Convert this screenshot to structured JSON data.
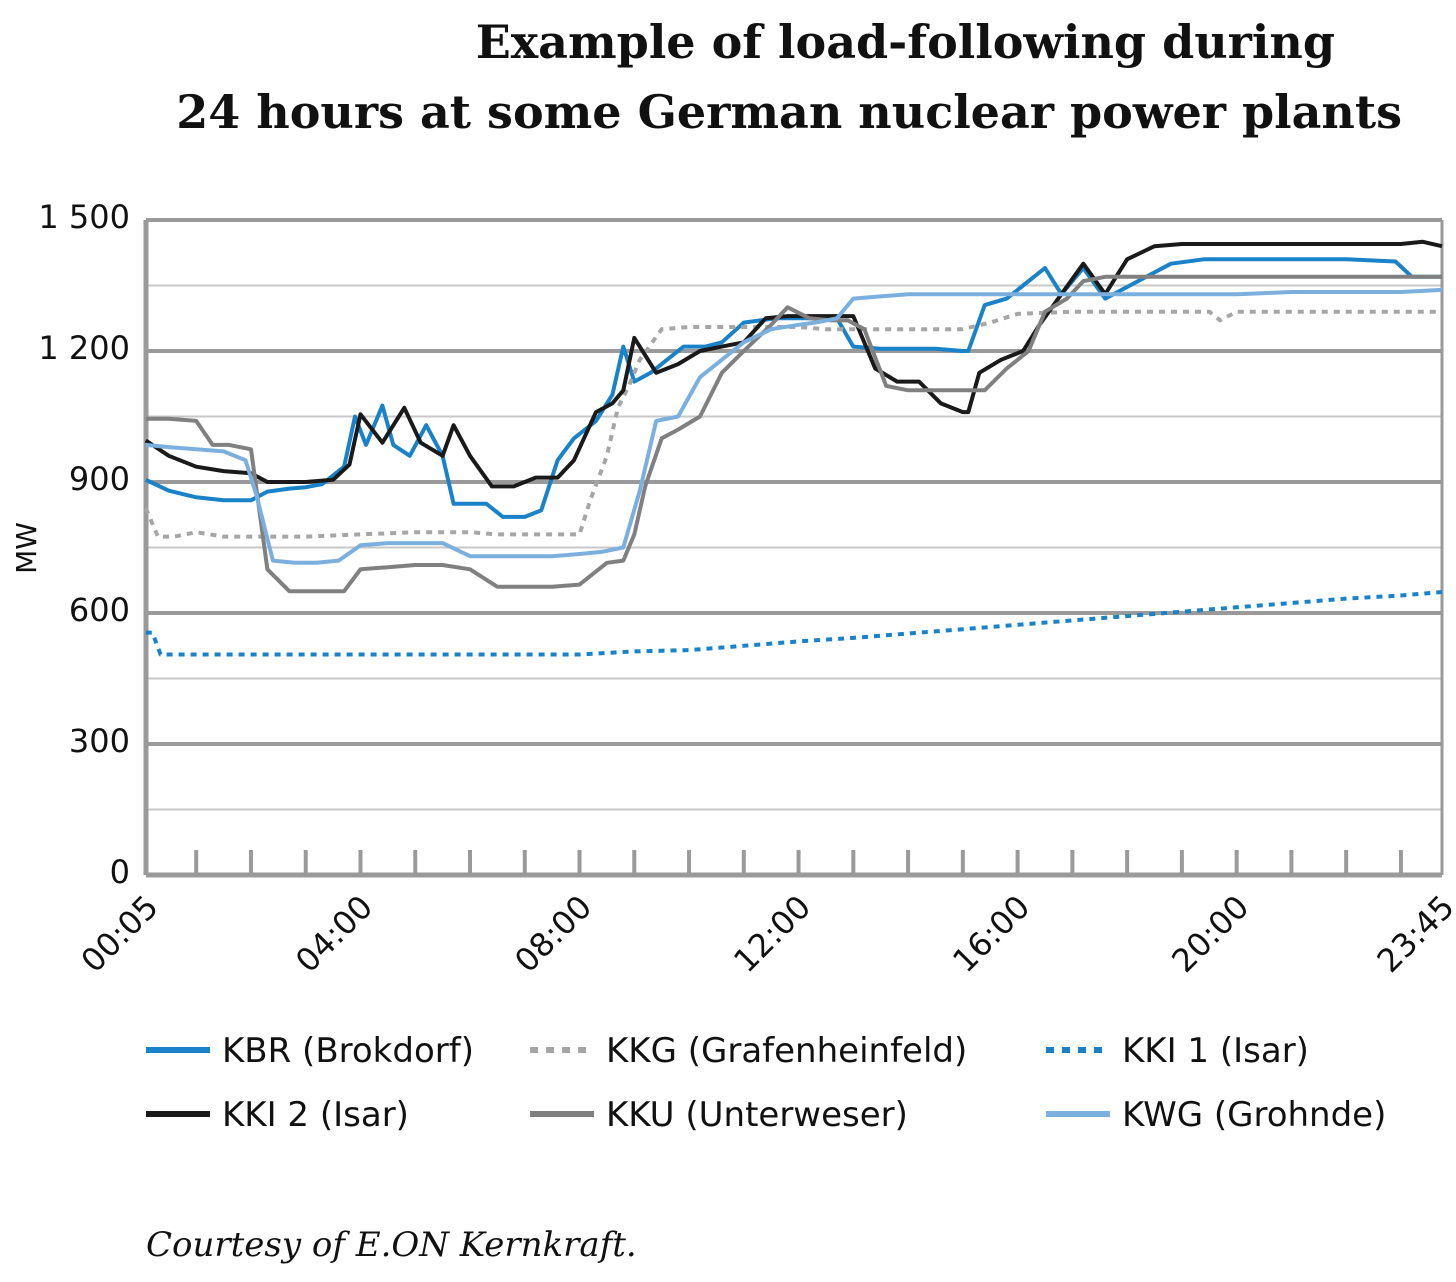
{
  "chart_data": {
    "type": "line",
    "title_line1": "Example of load-following during",
    "title_line2": "24 hours at some German nuclear power plants",
    "ylabel": "MW",
    "xlabel": "",
    "ylim": [
      0,
      1500
    ],
    "xlim": [
      0.0833,
      23.75
    ],
    "yticks": [
      0,
      300,
      600,
      900,
      1200,
      1500
    ],
    "ytick_labels": [
      "0",
      "300",
      "600",
      "900",
      "1 200",
      "1 500"
    ],
    "xticks": [
      0.0833,
      4,
      8,
      12,
      16,
      20,
      23.75
    ],
    "xtick_labels": [
      "00:05",
      "04:00",
      "08:00",
      "12:00",
      "16:00",
      "20:00",
      "23:45"
    ],
    "grid": true,
    "legend_position": "bottom",
    "credit": "Courtesy of E.ON Kernkraft.",
    "colors": {
      "KBR": "#1a82c8",
      "KKG": "#a6a6a6",
      "KKI1": "#1a82c8",
      "KKI2": "#1a1a1a",
      "KKU": "#808080",
      "KWG": "#7bb0de"
    },
    "series": [
      {
        "name": "KBR (Brokdorf)",
        "key": "KBR",
        "style": "solid",
        "x": [
          0.08,
          0.5,
          1,
          1.5,
          2,
          2.3,
          2.7,
          3,
          3.3,
          3.7,
          3.9,
          4.1,
          4.4,
          4.6,
          4.9,
          5.2,
          5.5,
          5.7,
          6,
          6.3,
          6.6,
          7,
          7.3,
          7.6,
          7.9,
          8.3,
          8.6,
          8.8,
          9,
          9.3,
          9.6,
          9.9,
          10.3,
          10.6,
          11,
          11.3,
          11.6,
          12,
          12.4,
          12.7,
          13,
          13.5,
          14,
          14.5,
          15,
          15.1,
          15.4,
          15.8,
          16.1,
          16.5,
          16.8,
          17.2,
          17.6,
          18.2,
          18.8,
          19.4,
          20,
          21,
          22,
          22.9,
          23.2,
          23.75
        ],
        "y": [
          905,
          880,
          865,
          858,
          858,
          878,
          885,
          888,
          895,
          935,
          1050,
          985,
          1075,
          985,
          960,
          1030,
          960,
          850,
          850,
          850,
          820,
          820,
          835,
          950,
          1000,
          1040,
          1100,
          1210,
          1130,
          1150,
          1180,
          1210,
          1210,
          1220,
          1265,
          1270,
          1275,
          1275,
          1275,
          1275,
          1210,
          1205,
          1205,
          1205,
          1200,
          1200,
          1305,
          1320,
          1350,
          1390,
          1330,
          1390,
          1320,
          1360,
          1400,
          1410,
          1410,
          1410,
          1410,
          1405,
          1370,
          1370
        ]
      },
      {
        "name": "KKG (Grafenheinfeld)",
        "key": "KKG",
        "style": "dotted",
        "x": [
          0.08,
          0.3,
          0.6,
          1,
          1.5,
          2,
          3,
          4,
          5,
          6,
          6.5,
          7,
          7.5,
          8,
          8.2,
          8.5,
          8.7,
          8.9,
          9.1,
          9.5,
          10,
          10.5,
          11,
          11.5,
          12,
          12.5,
          13,
          14,
          15,
          15.5,
          16,
          17,
          18,
          19,
          19.5,
          19.7,
          20,
          21,
          22,
          23,
          23.75
        ],
        "y": [
          840,
          775,
          775,
          785,
          775,
          775,
          775,
          780,
          785,
          785,
          780,
          780,
          780,
          780,
          860,
          960,
          1070,
          1120,
          1180,
          1250,
          1255,
          1255,
          1255,
          1255,
          1255,
          1250,
          1250,
          1250,
          1250,
          1265,
          1285,
          1290,
          1290,
          1290,
          1290,
          1270,
          1290,
          1290,
          1290,
          1290,
          1290
        ]
      },
      {
        "name": "KKI 1 (Isar)",
        "key": "KKI1",
        "style": "dotted",
        "x": [
          0.08,
          0.2,
          0.35,
          1,
          2,
          3,
          4,
          5,
          6,
          7,
          8,
          9,
          10,
          11,
          12,
          13,
          14,
          15,
          16,
          17,
          18,
          19,
          20,
          21,
          22,
          23,
          23.75
        ],
        "y": [
          555,
          555,
          505,
          505,
          505,
          505,
          505,
          505,
          505,
          505,
          505,
          512,
          515,
          525,
          535,
          543,
          553,
          563,
          573,
          583,
          593,
          603,
          613,
          623,
          633,
          640,
          648
        ]
      },
      {
        "name": "KKI 2 (Isar)",
        "key": "KKI2",
        "style": "solid",
        "x": [
          0.08,
          0.5,
          1,
          1.5,
          2,
          2.3,
          2.7,
          3,
          3.5,
          3.8,
          4,
          4.4,
          4.8,
          5.1,
          5.5,
          5.7,
          6,
          6.4,
          6.8,
          7.2,
          7.6,
          7.9,
          8.3,
          8.6,
          8.8,
          9,
          9.4,
          9.8,
          10.2,
          10.6,
          11,
          11.4,
          11.8,
          12.2,
          12.6,
          13,
          13.4,
          13.8,
          14.2,
          14.6,
          15,
          15.1,
          15.3,
          15.7,
          16.1,
          16.4,
          16.8,
          17.2,
          17.6,
          18,
          18.5,
          19,
          20,
          21,
          22,
          23,
          23.4,
          23.75
        ],
        "y": [
          995,
          960,
          935,
          925,
          920,
          900,
          900,
          900,
          905,
          940,
          1055,
          990,
          1070,
          990,
          960,
          1030,
          960,
          890,
          890,
          910,
          910,
          950,
          1060,
          1080,
          1110,
          1230,
          1150,
          1170,
          1200,
          1210,
          1220,
          1275,
          1280,
          1280,
          1280,
          1280,
          1160,
          1130,
          1130,
          1080,
          1060,
          1060,
          1150,
          1180,
          1200,
          1260,
          1330,
          1400,
          1330,
          1410,
          1440,
          1445,
          1445,
          1445,
          1445,
          1445,
          1450,
          1440
        ]
      },
      {
        "name": "KKU (Unterweser)",
        "key": "KKU",
        "style": "solid",
        "x": [
          0.08,
          0.5,
          1,
          1.3,
          1.6,
          2,
          2.3,
          2.7,
          3,
          3.3,
          3.7,
          4,
          4.5,
          5,
          5.5,
          6,
          6.5,
          7,
          7.5,
          8,
          8.5,
          8.8,
          9,
          9.2,
          9.5,
          9.8,
          10.2,
          10.6,
          11,
          11.5,
          11.8,
          12.2,
          12.6,
          12.9,
          13.2,
          13.6,
          14,
          14.5,
          15,
          15.4,
          15.8,
          16.2,
          16.5,
          16.9,
          17.2,
          17.6,
          18,
          19,
          20,
          21,
          22,
          23,
          23.75
        ],
        "y": [
          1045,
          1045,
          1040,
          985,
          985,
          975,
          700,
          650,
          650,
          650,
          650,
          700,
          705,
          710,
          710,
          700,
          660,
          660,
          660,
          665,
          715,
          720,
          780,
          890,
          1000,
          1020,
          1050,
          1150,
          1200,
          1260,
          1300,
          1275,
          1270,
          1270,
          1250,
          1120,
          1110,
          1110,
          1110,
          1110,
          1160,
          1200,
          1290,
          1320,
          1360,
          1370,
          1370,
          1370,
          1370,
          1370,
          1370,
          1370,
          1370
        ]
      },
      {
        "name": "KWG (Grohnde)",
        "key": "KWG",
        "style": "solid",
        "x": [
          0.08,
          0.5,
          1,
          1.5,
          1.9,
          2.1,
          2.4,
          2.8,
          3.2,
          3.6,
          4,
          4.5,
          5,
          5.5,
          6,
          6.5,
          7,
          7.5,
          8,
          8.4,
          8.8,
          9.1,
          9.4,
          9.8,
          10.2,
          10.6,
          11,
          11.5,
          12,
          12.3,
          12.7,
          13,
          13.5,
          14,
          15,
          16,
          17,
          18,
          19,
          20,
          21,
          22,
          23,
          23.75
        ],
        "y": [
          985,
          980,
          975,
          970,
          950,
          870,
          720,
          715,
          715,
          720,
          755,
          760,
          760,
          760,
          730,
          730,
          730,
          730,
          735,
          740,
          750,
          880,
          1040,
          1050,
          1140,
          1180,
          1220,
          1250,
          1260,
          1265,
          1275,
          1320,
          1325,
          1330,
          1330,
          1330,
          1330,
          1330,
          1330,
          1330,
          1335,
          1335,
          1335,
          1340
        ]
      }
    ]
  }
}
